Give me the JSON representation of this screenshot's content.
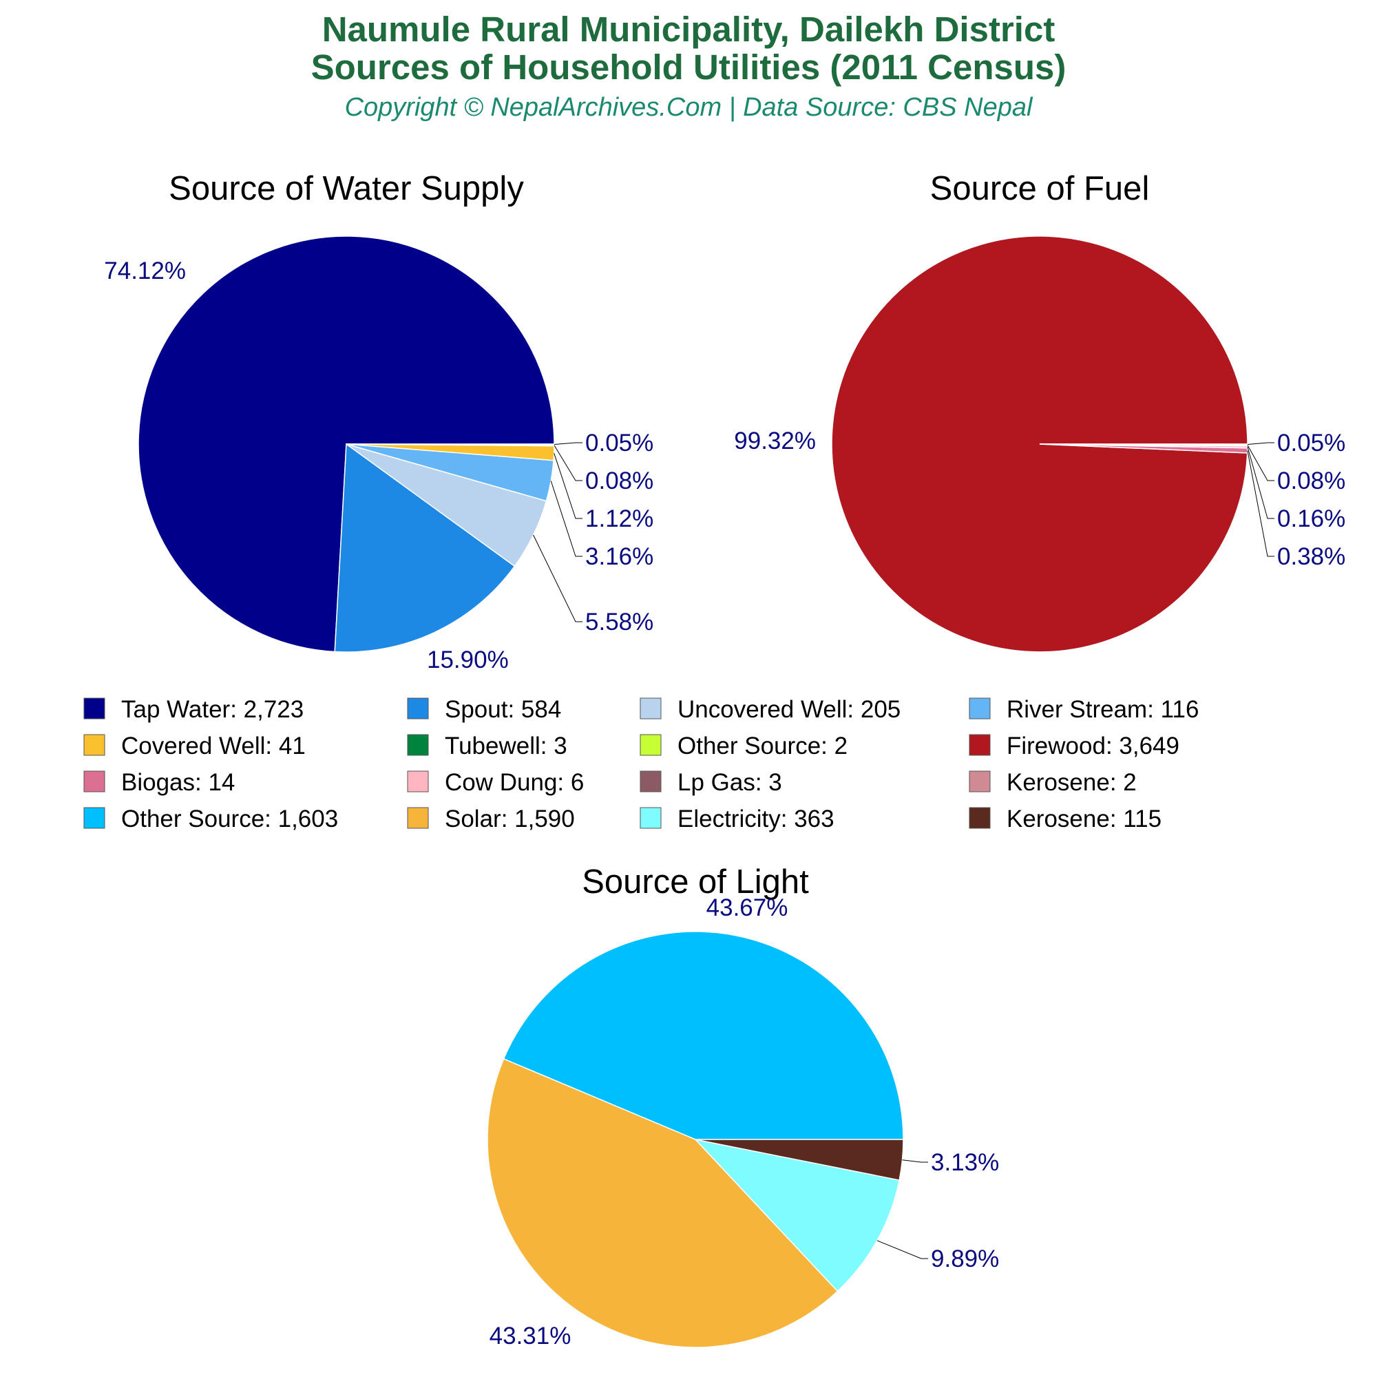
{
  "header": {
    "title_line1": "Naumule Rural Municipality, Dailekh District",
    "title_line2": "Sources of Household Utilities (2011 Census)",
    "subtitle": "Copyright © NepalArchives.Com | Data Source: CBS Nepal"
  },
  "chart_data": [
    {
      "type": "pie",
      "title": "Source of Water Supply",
      "slices": [
        {
          "label": "Tap Water",
          "value": 2723,
          "value_label": "2,723",
          "pct": "74.12%",
          "color": "#00008b"
        },
        {
          "label": "Spout",
          "value": 584,
          "value_label": "584",
          "pct": "15.90%",
          "color": "#1e88e5"
        },
        {
          "label": "Uncovered Well",
          "value": 205,
          "value_label": "205",
          "pct": "5.58%",
          "color": "#b9d3ee"
        },
        {
          "label": "River Stream",
          "value": 116,
          "value_label": "116",
          "pct": "3.16%",
          "color": "#64b5f6"
        },
        {
          "label": "Covered Well",
          "value": 41,
          "value_label": "41",
          "pct": "1.12%",
          "color": "#fbc02d"
        },
        {
          "label": "Tubewell",
          "value": 3,
          "value_label": "3",
          "pct": "0.08%",
          "color": "#00843d"
        },
        {
          "label": "Other Source",
          "value": 2,
          "value_label": "2",
          "pct": "0.05%",
          "color": "#c6ff33"
        }
      ]
    },
    {
      "type": "pie",
      "title": "Source of Fuel",
      "slices": [
        {
          "label": "Firewood",
          "value": 3649,
          "value_label": "3,649",
          "pct": "99.32%",
          "color": "#b0171f"
        },
        {
          "label": "Biogas",
          "value": 14,
          "value_label": "14",
          "pct": "0.38%",
          "color": "#db7093"
        },
        {
          "label": "Cow Dung",
          "value": 6,
          "value_label": "6",
          "pct": "0.16%",
          "color": "#ffb6c1"
        },
        {
          "label": "Lp Gas",
          "value": 3,
          "value_label": "3",
          "pct": "0.08%",
          "color": "#8b5a62"
        },
        {
          "label": "Kerosene",
          "value": 2,
          "value_label": "2",
          "pct": "0.05%",
          "color": "#d08a94"
        }
      ]
    },
    {
      "type": "pie",
      "title": "Source of Light",
      "slices": [
        {
          "label": "Other Source",
          "value": 1603,
          "value_label": "1,603",
          "pct": "43.67%",
          "color": "#00bfff"
        },
        {
          "label": "Solar",
          "value": 1590,
          "value_label": "1,590",
          "pct": "43.31%",
          "color": "#f6b53a"
        },
        {
          "label": "Electricity",
          "value": 363,
          "value_label": "363",
          "pct": "9.89%",
          "color": "#7ffcff"
        },
        {
          "label": "Kerosene",
          "value": 115,
          "value_label": "115",
          "pct": "3.13%",
          "color": "#5a2a1e"
        }
      ]
    }
  ],
  "legend": [
    {
      "text": "Tap Water: 2,723",
      "color": "#00008b"
    },
    {
      "text": "Spout: 584",
      "color": "#1e88e5"
    },
    {
      "text": "Uncovered Well: 205",
      "color": "#b9d3ee"
    },
    {
      "text": "River Stream: 116",
      "color": "#64b5f6"
    },
    {
      "text": "Covered Well: 41",
      "color": "#fbc02d"
    },
    {
      "text": "Tubewell: 3",
      "color": "#00843d"
    },
    {
      "text": "Other Source: 2",
      "color": "#c6ff33"
    },
    {
      "text": "Firewood: 3,649",
      "color": "#b0171f"
    },
    {
      "text": "Biogas: 14",
      "color": "#db7093"
    },
    {
      "text": "Cow Dung: 6",
      "color": "#ffb6c1"
    },
    {
      "text": "Lp Gas: 3",
      "color": "#8b5a62"
    },
    {
      "text": "Kerosene: 2",
      "color": "#d08a94"
    },
    {
      "text": "Other Source: 1,603",
      "color": "#00bfff"
    },
    {
      "text": "Solar: 1,590",
      "color": "#f6b53a"
    },
    {
      "text": "Electricity: 363",
      "color": "#7ffcff"
    },
    {
      "text": "Kerosene: 115",
      "color": "#5a2a1e"
    }
  ]
}
